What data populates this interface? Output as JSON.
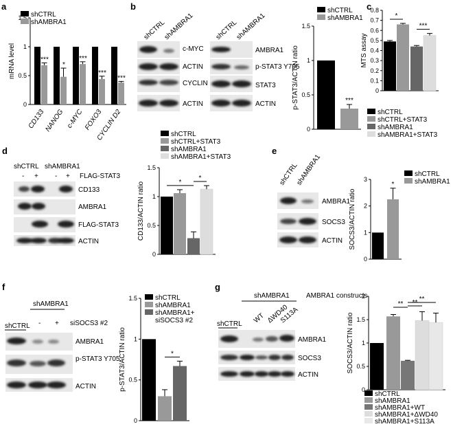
{
  "panels": {
    "a": {
      "label": "a"
    },
    "b": {
      "label": "b",
      "blot_lanes_left": [
        "shCTRL",
        "shAMBRA1"
      ],
      "blot_lanes_right": [
        "shCTRL",
        "shAMBRA1"
      ],
      "blot_rows_left": [
        "c-MYC",
        "ACTIN",
        "CYCLIN D2",
        "ACTIN"
      ],
      "blot_rows_right": [
        "AMBRA1",
        "p-STAT3 Y705",
        "STAT3",
        "ACTIN"
      ]
    },
    "c": {
      "label": "c"
    },
    "d": {
      "label": "d",
      "lanes": [
        "shCTRL",
        "shAMBRA1"
      ],
      "flag_signs": [
        "-",
        "+",
        "-",
        "+"
      ],
      "flag_label": "FLAG-STAT3",
      "blot_rows": [
        "CD133",
        "AMBRA1",
        "FLAG-STAT3",
        "ACTIN"
      ]
    },
    "e": {
      "label": "e",
      "lanes": [
        "shCTRL",
        "shAMBRA1"
      ],
      "blot_rows": [
        "AMBRA1",
        "SOCS3",
        "ACTIN"
      ]
    },
    "f": {
      "label": "f",
      "lanes": [
        "shCTRL",
        "shAMBRA1"
      ],
      "signs": [
        "-",
        "+"
      ],
      "si_label": "siSOCS3 #2",
      "blot_rows": [
        "AMBRA1",
        "p-STAT3 Y705",
        "ACTIN"
      ]
    },
    "g": {
      "label": "g",
      "group_label": "shAMBRA1",
      "lanes": [
        "shCTRL",
        "WT",
        "ΔWD40",
        "S113A"
      ],
      "constructs_label": "AMBRA1 constructs",
      "blot_rows": [
        "AMBRA1",
        "SOCS3",
        "ACTIN"
      ]
    }
  },
  "chart_data": [
    {
      "id": "a",
      "type": "bar",
      "categories": [
        "CD133",
        "NANOG",
        "c-MYC",
        "FOXO3",
        "CYCLIN D2"
      ],
      "series": [
        {
          "name": "shCTRL",
          "values": [
            1,
            1,
            1,
            1,
            1
          ],
          "color": "#000000"
        },
        {
          "name": "shAMBRA1",
          "values": [
            0.68,
            0.48,
            0.7,
            0.44,
            0.38
          ],
          "errors": [
            0.04,
            0.15,
            0.04,
            0.05,
            0.02
          ],
          "color": "#999999"
        }
      ],
      "significance": [
        "***",
        "*",
        "***",
        "***",
        "***"
      ],
      "ylabel": "mRNA level",
      "ylim": [
        0,
        1.5
      ],
      "yticks": [
        "0",
        "0.5",
        "1",
        "1.5"
      ]
    },
    {
      "id": "b",
      "type": "bar",
      "categories": [
        "shCTRL",
        "shAMBRA1"
      ],
      "values": [
        1,
        0.3
      ],
      "errors": [
        0,
        0.06
      ],
      "colors": [
        "#000000",
        "#999999"
      ],
      "legend": [
        "shCTRL",
        "shAMBRA1"
      ],
      "significance": [
        "",
        "***"
      ],
      "ylabel": "p-STAT3/ACTIN ratio",
      "ylim": [
        0,
        1.5
      ],
      "yticks": [
        "0",
        "0.5",
        "1",
        "1.5"
      ]
    },
    {
      "id": "c",
      "type": "bar",
      "categories": [
        "shCTRL",
        "shCTRL+STAT3",
        "shAMBRA1",
        "shAMBRA1+STAT3"
      ],
      "values": [
        0.49,
        0.66,
        0.44,
        0.55
      ],
      "errors": [
        0.01,
        0.01,
        0.01,
        0.02
      ],
      "colors": [
        "#000000",
        "#999999",
        "#666666",
        "#dddddd"
      ],
      "legend": [
        "shCTRL",
        "shCTRL+STAT3",
        "shAMBRA1",
        "shAMBRA1+STAT3"
      ],
      "brackets": [
        {
          "from": 0,
          "to": 1,
          "label": "*"
        },
        {
          "from": 2,
          "to": 3,
          "label": "***"
        }
      ],
      "ylabel": "MTS assay",
      "ylim": [
        0,
        0.8
      ],
      "yticks": [
        "0",
        "0.1",
        "0.2",
        "0.3",
        "0.4",
        "0.5",
        "0.6",
        "0.7",
        "0.8"
      ]
    },
    {
      "id": "d",
      "type": "bar",
      "categories": [
        "shCTRL",
        "shCTRL+STAT3",
        "shAMBRA1",
        "shAMBRA1+STAT3"
      ],
      "values": [
        1,
        1.06,
        0.28,
        1.13
      ],
      "errors": [
        0,
        0.06,
        0.11,
        0.06
      ],
      "colors": [
        "#000000",
        "#999999",
        "#666666",
        "#dddddd"
      ],
      "legend": [
        "shCTRL",
        "shCTRL+STAT3",
        "shAMBRA1",
        "shAMBRA1+STAT3"
      ],
      "brackets": [
        {
          "from": 0,
          "to": 2,
          "label": "*"
        },
        {
          "from": 2,
          "to": 3,
          "label": "*"
        }
      ],
      "ylabel": "CD133/ACTIN ratio",
      "ylim": [
        0,
        1.5
      ],
      "yticks": [
        "0",
        "0.5",
        "1",
        "1.5"
      ]
    },
    {
      "id": "e",
      "type": "bar",
      "categories": [
        "shCTRL",
        "shAMBRA1"
      ],
      "values": [
        1,
        2.25
      ],
      "errors": [
        0,
        0.42
      ],
      "colors": [
        "#000000",
        "#999999"
      ],
      "legend": [
        "shCTRL",
        "shAMBRA1"
      ],
      "significance": [
        "",
        "*"
      ],
      "ylabel": "SOCS3/ACTIN ratio",
      "ylim": [
        0,
        3
      ],
      "yticks": [
        "0",
        "1",
        "2",
        "3"
      ]
    },
    {
      "id": "f",
      "type": "bar",
      "categories": [
        "shCTRL",
        "shAMBRA1",
        "shAMBRA1+ siSOCS3 #2"
      ],
      "values": [
        1,
        0.3,
        0.67
      ],
      "errors": [
        0,
        0.08,
        0.06
      ],
      "colors": [
        "#000000",
        "#999999",
        "#666666"
      ],
      "legend": [
        "shCTRL",
        "shAMBRA1",
        "shAMBRA1+",
        "siSOCS3 #2"
      ],
      "brackets": [
        {
          "from": 1,
          "to": 2,
          "label": "*"
        }
      ],
      "ylabel": "p-STAT3/ACTIN ratio",
      "ylim": [
        0,
        1.5
      ],
      "yticks": [
        "0",
        "0.5",
        "1",
        "1.5"
      ]
    },
    {
      "id": "g",
      "type": "bar",
      "categories": [
        "shCTRL",
        "shAMBRA1",
        "shAMBRA1+WT",
        "shAMBRA1+ΔWD40",
        "shAMBRA1+S113A"
      ],
      "values": [
        1,
        1.57,
        0.62,
        1.48,
        1.44
      ],
      "errors": [
        0,
        0.04,
        0.01,
        0.19,
        0.2
      ],
      "colors": [
        "#000000",
        "#999999",
        "#777777",
        "#dddddd",
        "#e8e8e8"
      ],
      "legend": [
        "shCTRL",
        "shAMBRA1",
        "shAMBRA1+WT",
        "shAMBRA1+ΔWD40",
        "shAMBRA1+S113A"
      ],
      "brackets": [
        {
          "from": 1,
          "to": 2,
          "label": "**"
        },
        {
          "from": 2,
          "to": 3,
          "label": "**"
        },
        {
          "from": 2,
          "to": 4,
          "label": "**"
        }
      ],
      "ylabel": "SOCS3/ACTIN ratio",
      "ylim": [
        0,
        2
      ],
      "yticks": [
        "0",
        "0.5",
        "1",
        "1.5",
        "2"
      ]
    }
  ]
}
